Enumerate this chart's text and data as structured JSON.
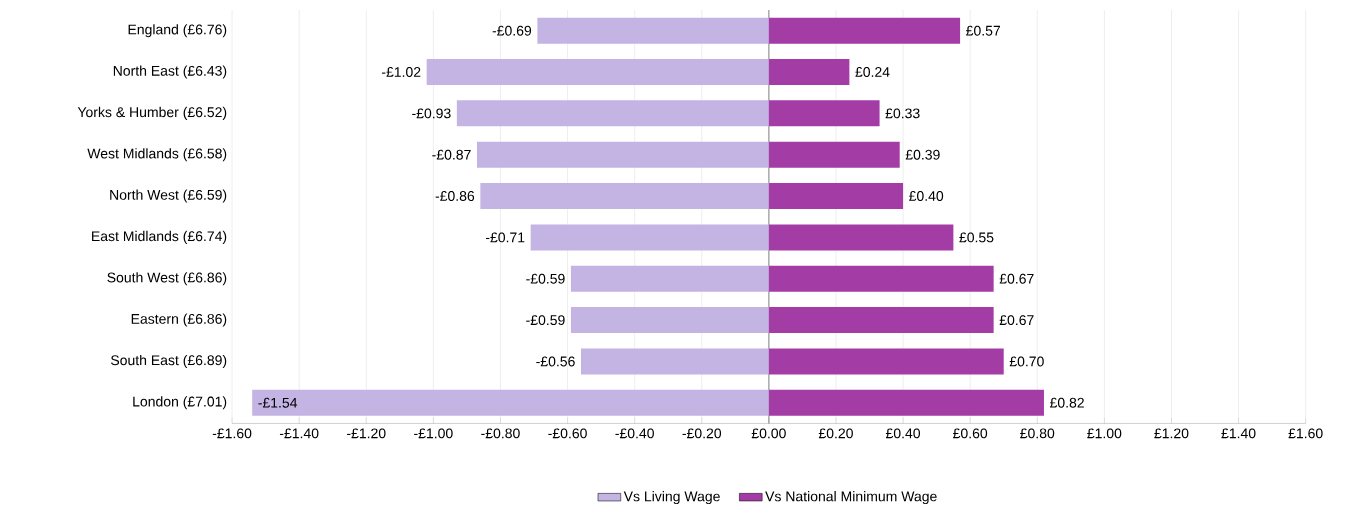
{
  "chart_data": {
    "type": "bar",
    "orientation": "horizontal",
    "categories": [
      "England (£6.76)",
      "North East (£6.43)",
      "Yorks & Humber (£6.52)",
      "West Midlands (£6.58)",
      "North West (£6.59)",
      "East Midlands (£6.74)",
      "South West (£6.86)",
      "Eastern (£6.86)",
      "South East (£6.89)",
      "London (£7.01)"
    ],
    "series": [
      {
        "name": "Vs Living Wage",
        "color": "#c3b4e4",
        "values": [
          -0.69,
          -1.02,
          -0.93,
          -0.87,
          -0.86,
          -0.71,
          -0.59,
          -0.59,
          -0.56,
          -1.54
        ],
        "value_labels": [
          "-£0.69",
          "-£1.02",
          "-£0.93",
          "-£0.87",
          "-£0.86",
          "-£0.71",
          "-£0.59",
          "-£0.59",
          "-£0.56",
          "-£1.54"
        ]
      },
      {
        "name": "Vs National Minimum Wage",
        "color": "#a43ca6",
        "values": [
          0.57,
          0.24,
          0.33,
          0.39,
          0.4,
          0.55,
          0.67,
          0.67,
          0.7,
          0.82
        ],
        "value_labels": [
          "£0.57",
          "£0.24",
          "£0.33",
          "£0.39",
          "£0.40",
          "£0.55",
          "£0.67",
          "£0.67",
          "£0.70",
          "£0.82"
        ]
      }
    ],
    "xlim": [
      -1.6,
      1.6
    ],
    "xticks": [
      {
        "value": -1.6,
        "label": "-£1.60"
      },
      {
        "value": -1.4,
        "label": "-£1.40"
      },
      {
        "value": -1.2,
        "label": "-£1.20"
      },
      {
        "value": -1.0,
        "label": "-£1.00"
      },
      {
        "value": -0.8,
        "label": "-£0.80"
      },
      {
        "value": -0.6,
        "label": "-£0.60"
      },
      {
        "value": -0.4,
        "label": "-£0.40"
      },
      {
        "value": -0.2,
        "label": "-£0.20"
      },
      {
        "value": 0,
        "label": "£0.00"
      },
      {
        "value": 0.2,
        "label": "£0.20"
      },
      {
        "value": 0.4,
        "label": "£0.40"
      },
      {
        "value": 0.6,
        "label": "£0.60"
      },
      {
        "value": 0.8,
        "label": "£0.80"
      },
      {
        "value": 1.0,
        "label": "£1.00"
      },
      {
        "value": 1.2,
        "label": "£1.20"
      },
      {
        "value": 1.4,
        "label": "£1.40"
      },
      {
        "value": 1.6,
        "label": "£1.60"
      }
    ],
    "grid": "x",
    "legend": "bottom",
    "stacked": true
  }
}
